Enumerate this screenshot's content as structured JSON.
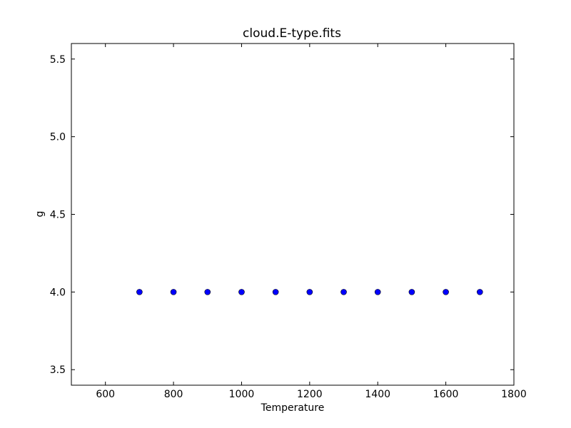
{
  "chart_data": {
    "type": "scatter",
    "title": "cloud.E-type.fits",
    "xlabel": "Temperature",
    "ylabel": "g",
    "xlim": [
      500,
      1800
    ],
    "ylim": [
      3.4,
      5.6
    ],
    "xticks": [
      600,
      800,
      1000,
      1200,
      1400,
      1600,
      1800
    ],
    "yticks": [
      3.5,
      4.0,
      4.5,
      5.0,
      5.5
    ],
    "xtick_labels": [
      "600",
      "800",
      "1000",
      "1200",
      "1400",
      "1600",
      "1800"
    ],
    "ytick_labels": [
      "3.5",
      "4.0",
      "4.5",
      "5.0",
      "5.5"
    ],
    "grid": false,
    "marker_color": "#0000ff",
    "points": [
      {
        "x": 700,
        "y": 4.0
      },
      {
        "x": 800,
        "y": 4.0
      },
      {
        "x": 900,
        "y": 4.0
      },
      {
        "x": 1000,
        "y": 4.0
      },
      {
        "x": 1100,
        "y": 4.0
      },
      {
        "x": 1200,
        "y": 4.0
      },
      {
        "x": 1300,
        "y": 4.0
      },
      {
        "x": 1400,
        "y": 4.0
      },
      {
        "x": 1500,
        "y": 4.0
      },
      {
        "x": 1600,
        "y": 4.0
      },
      {
        "x": 1700,
        "y": 4.0
      }
    ]
  }
}
